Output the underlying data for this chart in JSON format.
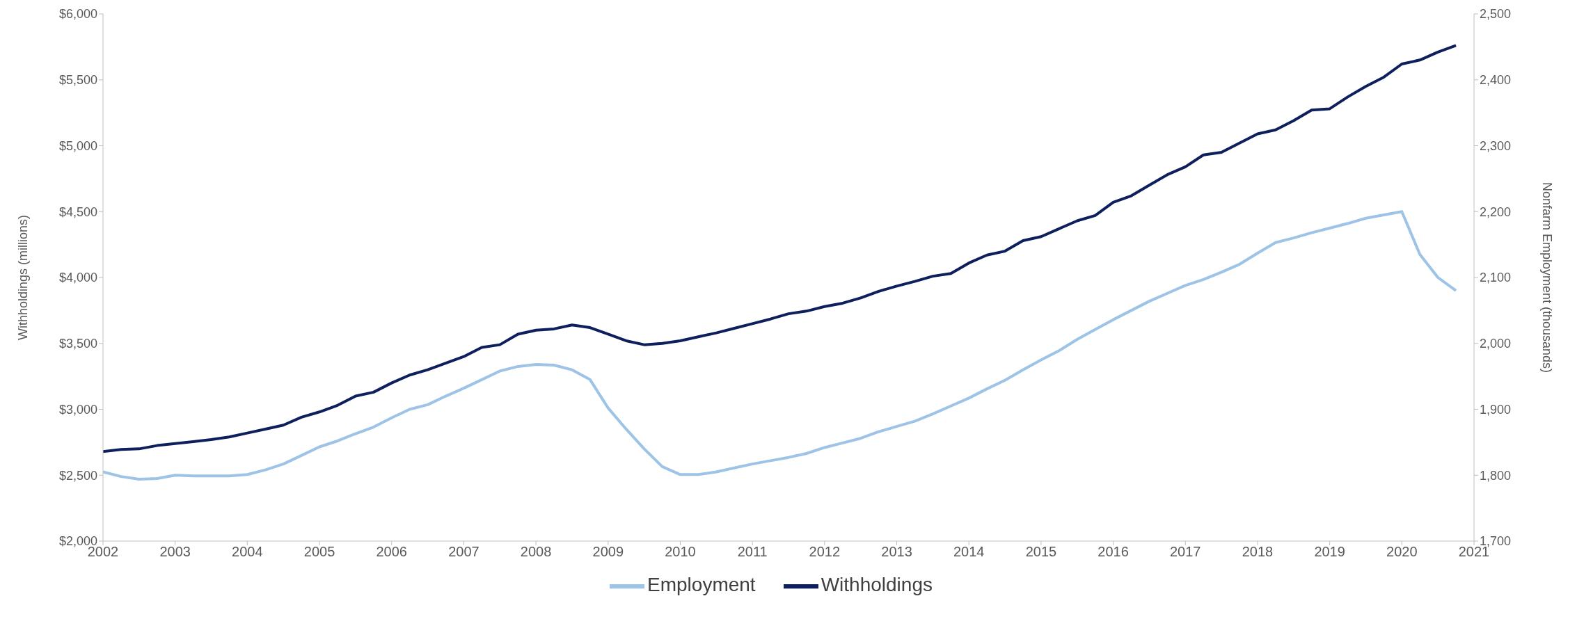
{
  "chart_data": {
    "type": "line",
    "ylabel": "Withholdings (millions)",
    "y2label": "Nonfarm Employment (thousands)",
    "x": [
      2002,
      2002.25,
      2002.5,
      2002.75,
      2003,
      2003.25,
      2003.5,
      2003.75,
      2004,
      2004.25,
      2004.5,
      2004.75,
      2005,
      2005.25,
      2005.5,
      2005.75,
      2006,
      2006.25,
      2006.5,
      2006.75,
      2007,
      2007.25,
      2007.5,
      2007.75,
      2008,
      2008.25,
      2008.5,
      2008.75,
      2009,
      2009.25,
      2009.5,
      2009.75,
      2010,
      2010.25,
      2010.5,
      2010.75,
      2011,
      2011.25,
      2011.5,
      2011.75,
      2012,
      2012.25,
      2012.5,
      2012.75,
      2013,
      2013.25,
      2013.5,
      2013.75,
      2014,
      2014.25,
      2014.5,
      2014.75,
      2015,
      2015.25,
      2015.5,
      2015.75,
      2016,
      2016.25,
      2016.5,
      2016.75,
      2017,
      2017.25,
      2017.5,
      2017.75,
      2018,
      2018.25,
      2018.5,
      2018.75,
      2019,
      2019.25,
      2019.5,
      2019.75,
      2020,
      2020.25,
      2020.5,
      2020.75
    ],
    "series": [
      {
        "name": "Withholdings",
        "color": "#0d1f5c",
        "values": [
          2680,
          2695,
          2700,
          2725,
          2740,
          2755,
          2770,
          2790,
          2820,
          2850,
          2880,
          2940,
          2980,
          3030,
          3100,
          3130,
          3200,
          3260,
          3300,
          3350,
          3400,
          3470,
          3490,
          3570,
          3600,
          3610,
          3640,
          3620,
          3570,
          3520,
          3490,
          3500,
          3520,
          3550,
          3580,
          3615,
          3650,
          3685,
          3725,
          3745,
          3780,
          3805,
          3845,
          3895,
          3935,
          3970,
          4010,
          4030,
          4110,
          4170,
          4200,
          4280,
          4310,
          4370,
          4430,
          4470,
          4570,
          4620,
          4700,
          4780,
          4840,
          4930,
          4950,
          5020,
          5090,
          5120,
          5190,
          5270,
          5280,
          5370,
          5450,
          5520,
          5620,
          5650,
          5710,
          5760
        ]
      },
      {
        "name": "Employment",
        "color": "#9dc3e6",
        "axis": "y2",
        "values": [
          1805,
          1798,
          1794,
          1795,
          1800,
          1799,
          1799,
          1799,
          1801,
          1808,
          1817,
          1830,
          1843,
          1852,
          1863,
          1873,
          1887,
          1900,
          1907,
          1920,
          1932,
          1945,
          1958,
          1965,
          1968,
          1967,
          1960,
          1945,
          1902,
          1870,
          1840,
          1813,
          1801,
          1801,
          1805,
          1811,
          1817,
          1822,
          1827,
          1833,
          1842,
          1849,
          1856,
          1866,
          1874,
          1882,
          1893,
          1905,
          1917,
          1931,
          1944,
          1960,
          1975,
          1989,
          2006,
          2021,
          2036,
          2050,
          2064,
          2076,
          2088,
          2097,
          2108,
          2120,
          2137,
          2153,
          2160,
          2168,
          2175,
          2182,
          2190,
          2195,
          2200,
          2135,
          2100,
          2080
        ]
      }
    ],
    "xlim": [
      2002,
      2021
    ],
    "xticks": [
      2002,
      2003,
      2004,
      2005,
      2006,
      2007,
      2008,
      2009,
      2010,
      2011,
      2012,
      2013,
      2014,
      2015,
      2016,
      2017,
      2018,
      2019,
      2020,
      2021
    ],
    "ylim": [
      2000,
      6000
    ],
    "yticks": [
      {
        "value": 2000,
        "label": "$2,000"
      },
      {
        "value": 2500,
        "label": "$2,500"
      },
      {
        "value": 3000,
        "label": "$3,000"
      },
      {
        "value": 3500,
        "label": "$3,500"
      },
      {
        "value": 4000,
        "label": "$4,000"
      },
      {
        "value": 4500,
        "label": "$4,500"
      },
      {
        "value": 5000,
        "label": "$5,000"
      },
      {
        "value": 5500,
        "label": "$5,500"
      },
      {
        "value": 6000,
        "label": "$6,000"
      }
    ],
    "y2lim": [
      1700,
      2500
    ],
    "y2ticks": [
      {
        "value": 1700,
        "label": "1,700"
      },
      {
        "value": 1800,
        "label": "1,800"
      },
      {
        "value": 1900,
        "label": "1,900"
      },
      {
        "value": 2000,
        "label": "2,000"
      },
      {
        "value": 2100,
        "label": "2,100"
      },
      {
        "value": 2200,
        "label": "2,200"
      },
      {
        "value": 2300,
        "label": "2,300"
      },
      {
        "value": 2400,
        "label": "2,400"
      },
      {
        "value": 2500,
        "label": "2,500"
      }
    ],
    "grid": false,
    "legend": "bottom",
    "marker": "none",
    "line_style": "solid"
  }
}
